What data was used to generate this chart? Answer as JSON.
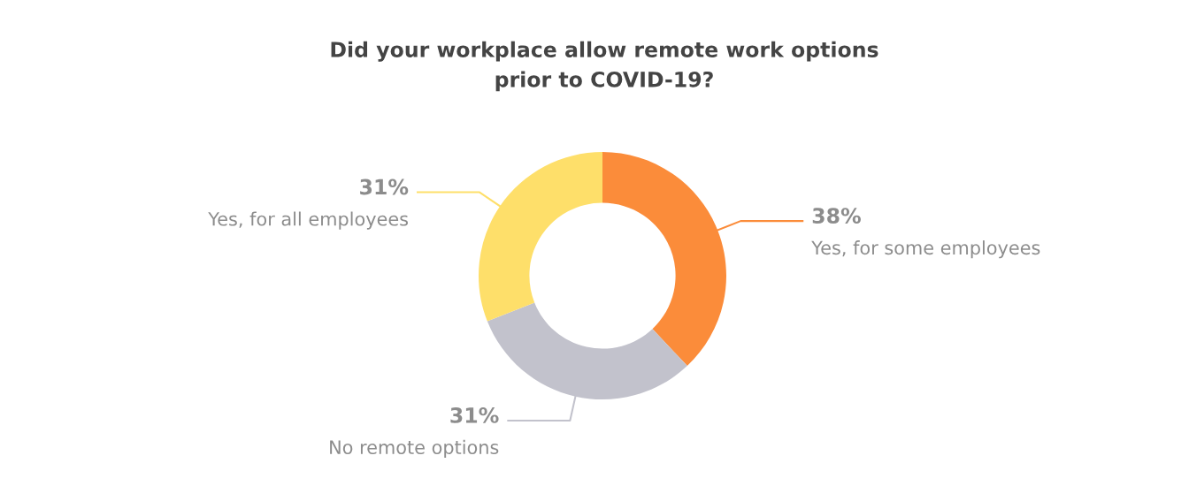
{
  "chart_data": {
    "type": "donut",
    "title": "Did your workplace allow remote work options\nprior to COVID-19?",
    "categories": [
      "Yes, for some employees",
      "No remote options",
      "Yes, for all employees"
    ],
    "values": [
      38,
      31,
      31
    ],
    "colors": [
      "#fb8c3a",
      "#c2c2cc",
      "#fedf6a"
    ],
    "value_labels": [
      "38%",
      "31%",
      "31%"
    ],
    "legend": false
  }
}
